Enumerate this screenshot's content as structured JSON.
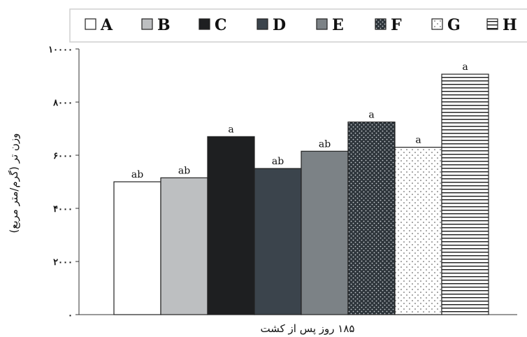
{
  "chart_data": {
    "type": "bar",
    "categories": [
      "A",
      "B",
      "C",
      "D",
      "E",
      "F",
      "G",
      "H"
    ],
    "values": [
      5000,
      5150,
      6700,
      5500,
      6150,
      7250,
      6300,
      9050
    ],
    "significance_labels": [
      "ab",
      "ab",
      "a",
      "ab",
      "ab",
      "a",
      "a",
      "a"
    ],
    "xlabel": "۱۸۵ روز پس از کشت",
    "ylabel": "وزن تر (گرم/متر مربع)",
    "ylim": [
      0,
      10000
    ],
    "yticks": [
      0,
      2000,
      4000,
      6000,
      8000,
      10000
    ],
    "ytick_labels": [
      "۰",
      "۲۰۰۰",
      "۴۰۰۰",
      "۶۰۰۰",
      "۸۰۰۰",
      "۱۰۰۰۰"
    ],
    "grid": false,
    "legend_position": "top",
    "legend": [
      {
        "label": "A",
        "fill": "white"
      },
      {
        "label": "B",
        "fill": "light-gray"
      },
      {
        "label": "C",
        "fill": "black"
      },
      {
        "label": "D",
        "fill": "dark-slate"
      },
      {
        "label": "E",
        "fill": "gray"
      },
      {
        "label": "F",
        "fill": "dotted-dark"
      },
      {
        "label": "G",
        "fill": "dotted-light"
      },
      {
        "label": "H",
        "fill": "horizontal-lines"
      }
    ],
    "colors": {
      "A": "#ffffff",
      "B": "#bdbfc1",
      "C": "#1e1f21",
      "D": "#3b444c",
      "E": "#7c8286",
      "F": "#2e353b",
      "G": "#ffffff",
      "H": "#ffffff"
    }
  }
}
